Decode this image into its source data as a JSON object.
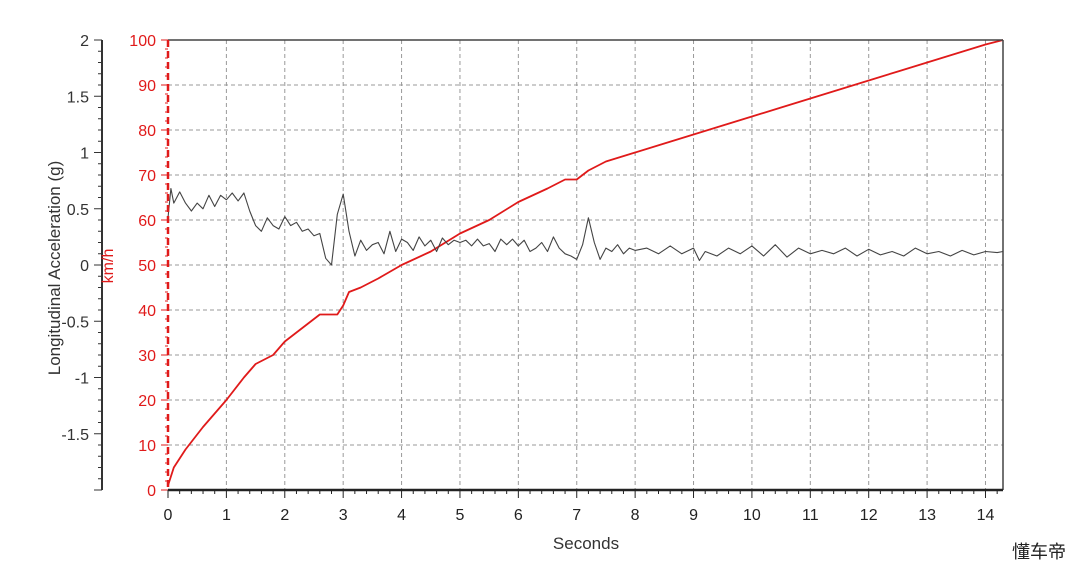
{
  "watermark": "懂车帝",
  "chart_data": {
    "type": "line",
    "xlabel": "Seconds",
    "ylabel_left": "Longitudinal Acceleration (g)",
    "ylabel_right": "km/h",
    "xlim": [
      0,
      14.3
    ],
    "ylim_left": [
      -2,
      2
    ],
    "ylim_right": [
      0,
      100
    ],
    "x_ticks": [
      "0",
      "1",
      "2",
      "3",
      "4",
      "5",
      "6",
      "7",
      "8",
      "9",
      "10",
      "11",
      "12",
      "13",
      "14"
    ],
    "y_left_ticks": [
      "2",
      "1.5",
      "1",
      "0.5",
      "0",
      "-0.5",
      "-1",
      "-1.5"
    ],
    "y_right_ticks": [
      "100",
      "90",
      "80",
      "70",
      "60",
      "50",
      "40",
      "30",
      "20",
      "10",
      "0"
    ],
    "grid": true,
    "colors": {
      "speed": "#e01a1a",
      "accel": "#444444",
      "grid": "#9a9a9a"
    },
    "series": [
      {
        "name": "speed",
        "axis": "right",
        "x": [
          0,
          0.1,
          0.3,
          0.6,
          1.0,
          1.3,
          1.5,
          1.8,
          2.0,
          2.3,
          2.6,
          2.8,
          2.9,
          3.0,
          3.1,
          3.3,
          3.6,
          4.0,
          4.5,
          5.0,
          5.5,
          6.0,
          6.5,
          6.8,
          7.0,
          7.2,
          7.5,
          8.0,
          8.5,
          9.0,
          9.5,
          10.0,
          10.5,
          11.0,
          11.5,
          12.0,
          12.5,
          13.0,
          13.5,
          14.0,
          14.3
        ],
        "values": [
          1,
          5,
          9,
          14,
          20,
          25,
          28,
          30,
          33,
          36,
          39,
          39,
          39,
          41,
          44,
          45,
          47,
          50,
          53,
          57,
          60,
          64,
          67,
          69,
          69,
          71,
          73,
          75,
          77,
          79,
          81,
          83,
          85,
          87,
          89,
          91,
          93,
          95,
          97,
          99,
          100
        ]
      },
      {
        "name": "accel",
        "axis": "left",
        "x": [
          0.0,
          0.05,
          0.1,
          0.2,
          0.3,
          0.4,
          0.5,
          0.6,
          0.7,
          0.8,
          0.9,
          1.0,
          1.1,
          1.2,
          1.3,
          1.4,
          1.5,
          1.6,
          1.7,
          1.8,
          1.9,
          2.0,
          2.1,
          2.2,
          2.3,
          2.4,
          2.5,
          2.6,
          2.7,
          2.8,
          2.9,
          3.0,
          3.1,
          3.2,
          3.3,
          3.4,
          3.5,
          3.6,
          3.7,
          3.8,
          3.9,
          4.0,
          4.1,
          4.2,
          4.3,
          4.4,
          4.5,
          4.6,
          4.7,
          4.8,
          4.9,
          5.0,
          5.1,
          5.2,
          5.3,
          5.4,
          5.5,
          5.6,
          5.7,
          5.8,
          5.9,
          6.0,
          6.1,
          6.2,
          6.3,
          6.4,
          6.5,
          6.6,
          6.7,
          6.8,
          6.9,
          7.0,
          7.1,
          7.2,
          7.3,
          7.4,
          7.5,
          7.6,
          7.7,
          7.8,
          7.9,
          8.0,
          8.2,
          8.4,
          8.6,
          8.8,
          9.0,
          9.1,
          9.2,
          9.4,
          9.6,
          9.8,
          10.0,
          10.2,
          10.4,
          10.6,
          10.8,
          11.0,
          11.2,
          11.4,
          11.6,
          11.8,
          12.0,
          12.2,
          12.4,
          12.6,
          12.8,
          13.0,
          13.2,
          13.4,
          13.6,
          13.8,
          14.0,
          14.2,
          14.3
        ],
        "values": [
          0.42,
          0.68,
          0.55,
          0.65,
          0.55,
          0.48,
          0.55,
          0.5,
          0.62,
          0.52,
          0.62,
          0.58,
          0.64,
          0.57,
          0.64,
          0.48,
          0.35,
          0.3,
          0.42,
          0.35,
          0.32,
          0.43,
          0.35,
          0.38,
          0.3,
          0.32,
          0.26,
          0.28,
          0.06,
          0.0,
          0.45,
          0.63,
          0.3,
          0.08,
          0.22,
          0.13,
          0.18,
          0.2,
          0.1,
          0.3,
          0.12,
          0.23,
          0.2,
          0.13,
          0.25,
          0.17,
          0.22,
          0.12,
          0.24,
          0.18,
          0.22,
          0.2,
          0.22,
          0.17,
          0.23,
          0.17,
          0.19,
          0.12,
          0.23,
          0.18,
          0.23,
          0.17,
          0.22,
          0.12,
          0.15,
          0.2,
          0.12,
          0.25,
          0.15,
          0.1,
          0.08,
          0.05,
          0.18,
          0.42,
          0.2,
          0.05,
          0.15,
          0.12,
          0.18,
          0.1,
          0.15,
          0.13,
          0.15,
          0.1,
          0.17,
          0.1,
          0.15,
          0.04,
          0.12,
          0.08,
          0.15,
          0.1,
          0.17,
          0.08,
          0.18,
          0.07,
          0.15,
          0.1,
          0.13,
          0.1,
          0.15,
          0.08,
          0.14,
          0.09,
          0.12,
          0.08,
          0.15,
          0.1,
          0.12,
          0.08,
          0.13,
          0.09,
          0.12,
          0.11,
          0.12
        ]
      }
    ]
  }
}
